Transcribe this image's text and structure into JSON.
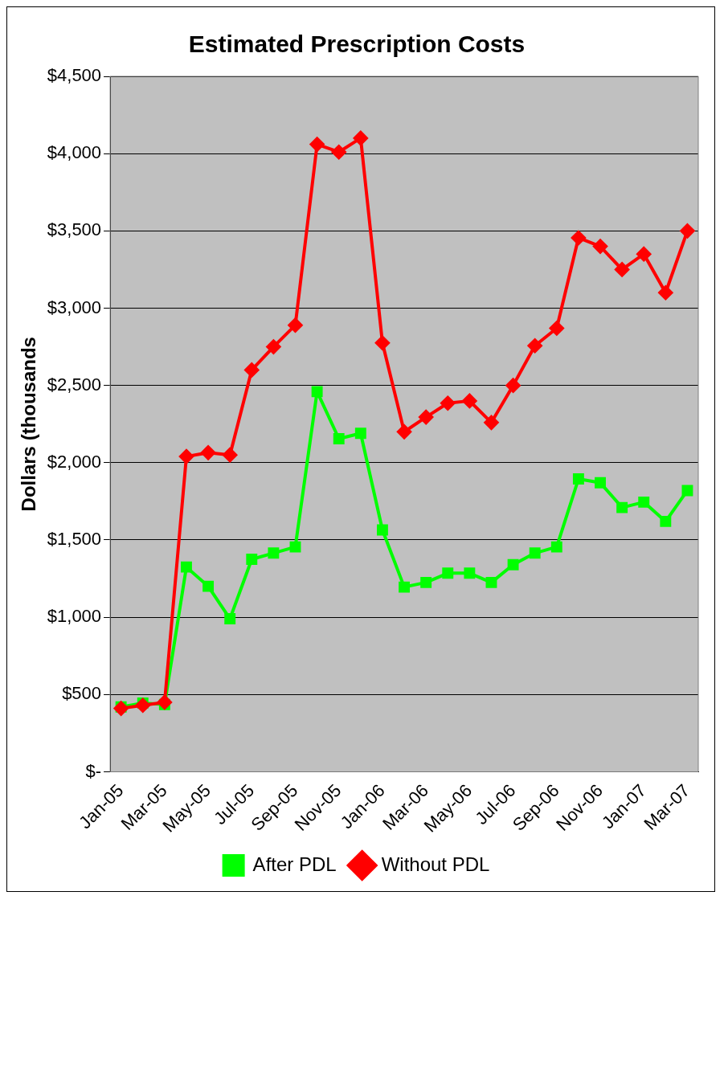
{
  "chart_data": {
    "type": "line",
    "title": "Estimated Prescription Costs",
    "ylabel": "Dollars (thousands",
    "categories": [
      "Jan-05",
      null,
      "Mar-05",
      null,
      "May-05",
      null,
      "Jul-05",
      null,
      "Sep-05",
      null,
      "Nov-05",
      null,
      "Jan-06",
      null,
      "Mar-06",
      null,
      "May-06",
      null,
      "Jul-06",
      null,
      "Sep-06",
      null,
      "Nov-06",
      null,
      "Jan-07",
      null,
      "Mar-07"
    ],
    "series": [
      {
        "name": "After PDL",
        "color": "#00ff00",
        "marker": "square",
        "values": [
          420,
          445,
          435,
          1325,
          1200,
          990,
          1375,
          1415,
          1455,
          2460,
          2155,
          2190,
          1565,
          1195,
          1225,
          1285,
          1285,
          1225,
          1340,
          1415,
          1455,
          1895,
          1870,
          1710,
          1745,
          1620,
          1820
        ]
      },
      {
        "name": "Without PDL",
        "color": "#ff0000",
        "marker": "diamond",
        "values": [
          410,
          430,
          450,
          2040,
          2065,
          2050,
          2600,
          2750,
          2890,
          4060,
          4010,
          4100,
          2775,
          2200,
          2295,
          2385,
          2400,
          2260,
          2500,
          2757,
          2870,
          3455,
          3400,
          3250,
          3350,
          3100,
          3500
        ]
      }
    ],
    "ylim": [
      0,
      4500
    ],
    "yticks": [
      {
        "value": 0,
        "label": "$-"
      },
      {
        "value": 500,
        "label": "$500"
      },
      {
        "value": 1000,
        "label": "$1,000"
      },
      {
        "value": 1500,
        "label": "$1,500"
      },
      {
        "value": 2000,
        "label": "$2,000"
      },
      {
        "value": 2500,
        "label": "$2,500"
      },
      {
        "value": 3000,
        "label": "$3,000"
      },
      {
        "value": 3500,
        "label": "$3,500"
      },
      {
        "value": 4000,
        "label": "$4,000"
      },
      {
        "value": 4500,
        "label": "$4,500"
      }
    ],
    "grid": "y",
    "legend": "bottom",
    "line_style": "solid"
  }
}
